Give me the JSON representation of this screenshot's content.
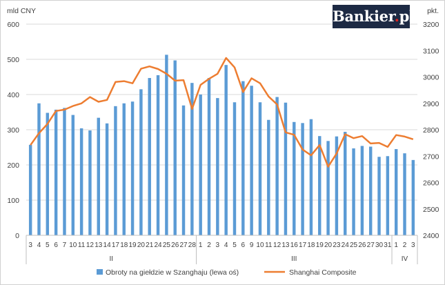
{
  "brand": {
    "name": "Bankier",
    "dot": ".",
    "tld": "pl"
  },
  "colors": {
    "bars": "#5b9bd5",
    "line": "#ed7d31",
    "grid": "#d9d9d9",
    "brand_bg": "#1d2a44",
    "brand_dot": "#e0231f"
  },
  "chart_data": {
    "type": "bar+line",
    "left_axis_label": "mld CNY",
    "right_axis_label": "pkt.",
    "left_ylim": [
      0,
      600
    ],
    "left_ticks": [
      0,
      100,
      200,
      300,
      400,
      500,
      600
    ],
    "right_ylim": [
      2400,
      3200
    ],
    "right_ticks": [
      2400,
      2500,
      2600,
      2700,
      2800,
      2900,
      3000,
      3100,
      3200
    ],
    "grid": true,
    "legend_position": "bottom",
    "categories": [
      "3",
      "4",
      "5",
      "6",
      "7",
      "10",
      "11",
      "12",
      "13",
      "14",
      "17",
      "18",
      "19",
      "20",
      "21",
      "24",
      "25",
      "26",
      "27",
      "28",
      "1",
      "2",
      "3",
      "4",
      "5",
      "6",
      "9",
      "10",
      "11",
      "12",
      "13",
      "16",
      "17",
      "18",
      "19",
      "20",
      "23",
      "24",
      "25",
      "26",
      "27",
      "30",
      "31",
      "1",
      "2",
      "3"
    ],
    "month_groups": [
      {
        "label": "II",
        "count": 20
      },
      {
        "label": "III",
        "count": 23
      },
      {
        "label": "IV",
        "count": 3
      }
    ],
    "series": [
      {
        "name": "Obroty na giełdzie w Szanghaju (lewa oś)",
        "type": "bar",
        "axis": "left",
        "values": [
          257,
          375,
          348,
          357,
          362,
          342,
          304,
          298,
          334,
          318,
          367,
          375,
          380,
          415,
          447,
          455,
          513,
          497,
          369,
          433,
          400,
          447,
          390,
          484,
          378,
          438,
          425,
          378,
          328,
          393,
          377,
          322,
          319,
          330,
          282,
          268,
          281,
          294,
          247,
          254,
          252,
          223,
          225,
          245,
          233,
          214
        ]
      },
      {
        "name": "Shanghai Composite",
        "type": "line",
        "axis": "right",
        "values": [
          2742,
          2787,
          2822,
          2871,
          2876,
          2890,
          2900,
          2924,
          2906,
          2913,
          2981,
          2984,
          2976,
          3031,
          3040,
          3030,
          3012,
          2986,
          2988,
          2879,
          2970,
          2993,
          3012,
          3072,
          3036,
          2943,
          2995,
          2976,
          2926,
          2896,
          2790,
          2781,
          2725,
          2703,
          2742,
          2660,
          2710,
          2783,
          2768,
          2776,
          2748,
          2750,
          2735,
          2780,
          2774,
          2764
        ]
      }
    ]
  }
}
